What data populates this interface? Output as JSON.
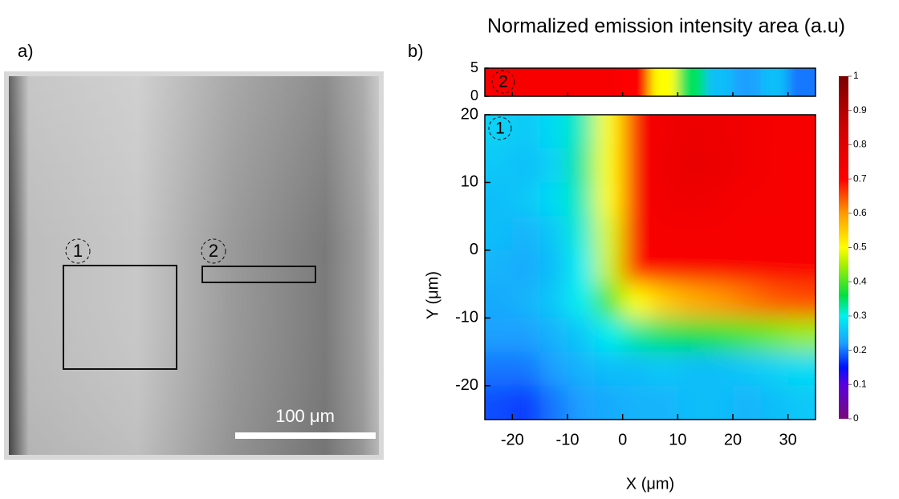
{
  "image_panel": {
    "label": "a)",
    "scale_bar": "100 μm",
    "regions": [
      "1",
      "2"
    ]
  },
  "chart_data": {
    "type": "heatmap",
    "panel_label": "b)",
    "title": "Normalized emission intensity area (a.u)",
    "x_label": "X (μm)",
    "y_label": "Y (μm)",
    "xlim": [
      -25,
      35
    ],
    "xticks": [
      -20,
      -10,
      0,
      10,
      20,
      30
    ],
    "ylim": [
      -25,
      20
    ],
    "yticks": [
      -20,
      -10,
      0,
      10,
      20
    ],
    "x": [
      -22.5,
      -17.5,
      -12.5,
      -7.5,
      -2.5,
      2.5,
      7.5,
      12.5,
      17.5,
      22.5,
      27.5,
      32.5
    ],
    "y": [
      17.5,
      12.5,
      7.5,
      2.5,
      -2.5,
      -7.5,
      -12.5,
      -17.5,
      -22.5
    ],
    "z": [
      [
        0.27,
        0.26,
        0.28,
        0.32,
        0.5,
        0.72,
        0.74,
        0.76,
        0.75,
        0.74,
        0.73,
        0.73
      ],
      [
        0.26,
        0.25,
        0.27,
        0.33,
        0.5,
        0.72,
        0.75,
        0.77,
        0.76,
        0.74,
        0.73,
        0.72
      ],
      [
        0.25,
        0.26,
        0.28,
        0.32,
        0.5,
        0.72,
        0.74,
        0.75,
        0.74,
        0.73,
        0.73,
        0.72
      ],
      [
        0.25,
        0.24,
        0.26,
        0.31,
        0.48,
        0.72,
        0.73,
        0.73,
        0.73,
        0.72,
        0.72,
        0.72
      ],
      [
        0.24,
        0.23,
        0.25,
        0.3,
        0.47,
        0.7,
        0.72,
        0.72,
        0.72,
        0.72,
        0.72,
        0.72
      ],
      [
        0.23,
        0.24,
        0.26,
        0.3,
        0.4,
        0.5,
        0.55,
        0.58,
        0.6,
        0.62,
        0.64,
        0.65
      ],
      [
        0.22,
        0.22,
        0.24,
        0.26,
        0.3,
        0.33,
        0.35,
        0.36,
        0.38,
        0.4,
        0.42,
        0.44
      ],
      [
        0.2,
        0.2,
        0.22,
        0.24,
        0.25,
        0.25,
        0.26,
        0.25,
        0.25,
        0.26,
        0.27,
        0.28
      ],
      [
        0.18,
        0.17,
        0.2,
        0.22,
        0.23,
        0.24,
        0.24,
        0.25,
        0.25,
        0.24,
        0.25,
        0.26
      ]
    ],
    "region": "1",
    "strip": {
      "ylim": [
        0,
        5
      ],
      "yticks": [
        0,
        5
      ],
      "region": "2",
      "z": [
        0.72,
        0.72,
        0.72,
        0.72,
        0.72,
        0.7,
        0.5,
        0.35,
        0.25,
        0.22,
        0.25,
        0.2
      ]
    },
    "clim": [
      0,
      1
    ],
    "cticks": [
      0,
      0.1,
      0.2,
      0.3,
      0.4,
      0.5,
      0.6,
      0.7,
      0.8,
      0.9,
      1
    ],
    "colormap": [
      [
        0,
        "#7a0a7a"
      ],
      [
        0.1,
        "#5a00e0"
      ],
      [
        0.15,
        "#0010ff"
      ],
      [
        0.22,
        "#1aa0ff"
      ],
      [
        0.3,
        "#00f0f0"
      ],
      [
        0.36,
        "#00e040"
      ],
      [
        0.45,
        "#a8f000"
      ],
      [
        0.5,
        "#ffff00"
      ],
      [
        0.6,
        "#ff9a00"
      ],
      [
        0.7,
        "#ff0000"
      ],
      [
        0.85,
        "#d00000"
      ],
      [
        1,
        "#7a0000"
      ]
    ]
  }
}
